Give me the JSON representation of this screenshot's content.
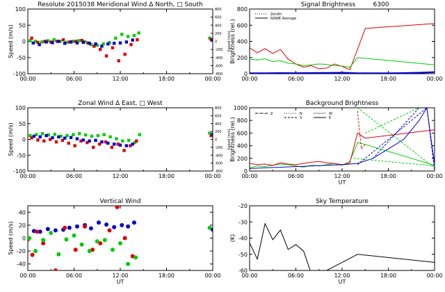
{
  "chart_data": [
    {
      "id": "meridional",
      "type": "scatter",
      "title_parts": [
        "Resolute  2015038",
        "Meridional Wind",
        "Δ North,",
        "□ South"
      ],
      "xlabel": "",
      "ylabel": "Speed (m/s)",
      "ylabel_right": "Speed (m/s)",
      "xlim": [
        0,
        24
      ],
      "ylim": [
        -100,
        100
      ],
      "yticks": [
        -100,
        -50,
        0,
        50,
        100
      ],
      "ylim_right": [
        -800,
        800
      ],
      "yticks_right": [
        -800,
        -600,
        -400,
        -200,
        0,
        200,
        400,
        600,
        800
      ],
      "xticks": [
        "00:00",
        "06:00",
        "12:00",
        "18:00",
        "00:00"
      ],
      "series": [
        {
          "color": "#00cc00",
          "x": [
            0.3,
            1.0,
            1.8,
            2.6,
            3.4,
            4.2,
            5.0,
            5.8,
            6.6,
            7.4,
            8.2,
            9.0,
            9.8,
            10.6,
            11.4,
            12.2,
            13.0,
            13.8,
            14.4
          ],
          "y": [
            2,
            0,
            -2,
            2,
            5,
            0,
            -3,
            0,
            2,
            -1,
            -10,
            -12,
            -8,
            -4,
            10,
            22,
            15,
            18,
            26
          ]
        },
        {
          "color": "#dd0000",
          "x": [
            0.5,
            1.3,
            2.2,
            3.0,
            3.8,
            4.6,
            5.4,
            6.2,
            7.0,
            7.8,
            8.6,
            9.4,
            10.2,
            11.0,
            11.8,
            12.6,
            13.4,
            14.2
          ],
          "y": [
            10,
            -3,
            0,
            -2,
            0,
            5,
            -2,
            0,
            3,
            -5,
            -15,
            -25,
            -45,
            -20,
            -60,
            -40,
            -10,
            5
          ]
        },
        {
          "color": "#0000cc",
          "x": [
            0.7,
            1.5,
            2.4,
            3.2,
            4.0,
            4.8,
            5.6,
            6.4,
            7.2,
            8.0,
            8.8,
            9.6,
            10.4,
            11.2,
            12.0,
            12.8,
            13.6
          ],
          "y": [
            -5,
            -10,
            -2,
            -4,
            0,
            -6,
            -2,
            -5,
            -3,
            -6,
            -8,
            -15,
            -8,
            -6,
            -5,
            -2,
            4
          ]
        }
      ],
      "extra_points": [
        {
          "color": "#00cc00",
          "x": 23.6,
          "y": 10
        },
        {
          "color": "#dd0000",
          "x": 23.8,
          "y": 6
        },
        {
          "color": "#0000cc",
          "x": 24.0,
          "y": 4
        }
      ]
    },
    {
      "id": "zonal",
      "type": "scatter",
      "title_parts": [
        "Zonal Wind",
        "Δ East,",
        "□ West"
      ],
      "xlabel": "",
      "ylabel": "Speed (m/s)",
      "ylabel_right": "Speed (m/s)",
      "xlim": [
        0,
        24
      ],
      "ylim": [
        -100,
        100
      ],
      "yticks": [
        -100,
        -50,
        0,
        50,
        100
      ],
      "ylim_right": [
        -800,
        800
      ],
      "yticks_right": [
        -800,
        -600,
        -400,
        -200,
        0,
        200,
        400,
        600,
        800
      ],
      "xticks": [
        "00:00",
        "06:00",
        "12:00",
        "18:00",
        "00:00"
      ],
      "series": [
        {
          "color": "#00cc00",
          "x": [
            0.3,
            1.1,
            1.9,
            2.7,
            3.5,
            4.3,
            5.1,
            5.9,
            6.7,
            7.5,
            8.3,
            9.1,
            9.9,
            10.7,
            11.5,
            12.3,
            13.1,
            13.9,
            14.5
          ],
          "y": [
            12,
            15,
            18,
            14,
            16,
            10,
            12,
            15,
            18,
            14,
            10,
            12,
            15,
            8,
            2,
            -5,
            -3,
            -10,
            15
          ]
        },
        {
          "color": "#dd0000",
          "x": [
            0.5,
            1.3,
            2.1,
            2.9,
            3.7,
            4.5,
            5.3,
            6.1,
            6.9,
            7.7,
            8.5,
            9.3,
            10.1,
            10.9,
            11.7,
            12.5,
            13.3,
            14.1
          ],
          "y": [
            5,
            -2,
            -5,
            0,
            -8,
            -3,
            -12,
            -20,
            -5,
            -10,
            -25,
            -15,
            -8,
            -25,
            -15,
            -35,
            -20,
            -5
          ]
        },
        {
          "color": "#0000cc",
          "x": [
            0.8,
            1.6,
            2.4,
            3.2,
            4.0,
            4.8,
            5.6,
            6.4,
            7.2,
            8.0,
            8.8,
            9.6,
            10.4,
            11.2,
            12.0,
            12.8,
            13.6
          ],
          "y": [
            10,
            8,
            12,
            5,
            8,
            4,
            6,
            2,
            -2,
            -5,
            -3,
            -8,
            -12,
            -15,
            -18,
            -20,
            -15
          ]
        }
      ],
      "extra_points": [
        {
          "color": "#00cc00",
          "x": 23.6,
          "y": 20
        },
        {
          "color": "#dd0000",
          "x": 23.8,
          "y": 12
        },
        {
          "color": "#0000cc",
          "x": 24.0,
          "y": 16
        }
      ]
    },
    {
      "id": "vertical",
      "type": "scatter",
      "title": "Vertical Wind",
      "xlabel": "UT",
      "ylabel": "Speed (m/s)",
      "xlim": [
        0,
        24
      ],
      "ylim": [
        -50,
        50
      ],
      "yticks": [
        -40,
        -20,
        0,
        20,
        40
      ],
      "xticks": [
        "00:00",
        "06:00",
        "12:00",
        "18:00",
        "00:00"
      ],
      "series": [
        {
          "color": "#0000cc",
          "x": [
            0.8,
            1.6,
            2.6,
            3.6,
            4.6,
            5.4,
            6.4,
            7.4,
            8.2,
            9.2,
            10.2,
            11.2,
            12.2,
            13.0,
            13.8
          ],
          "y": [
            11,
            10,
            14,
            12,
            13,
            16,
            18,
            20,
            15,
            24,
            21,
            17,
            20,
            18,
            24
          ]
        },
        {
          "color": "#dd0000",
          "x": [
            0.0,
            0.6,
            1.2,
            2.0,
            3.6,
            4.8,
            6.2,
            7.4,
            8.4,
            9.4,
            10.6,
            11.6,
            12.6,
            13.6
          ],
          "y": [
            -2,
            -26,
            10,
            -8,
            -50,
            16,
            -18,
            18,
            -18,
            -8,
            12,
            48,
            0,
            -28
          ]
        },
        {
          "color": "#00cc00",
          "x": [
            0.2,
            1.0,
            2.0,
            3.0,
            4.0,
            5.0,
            6.0,
            7.0,
            8.0,
            9.0,
            10.0,
            11.0,
            12.0,
            13.0,
            14.0
          ],
          "y": [
            0,
            -20,
            -3,
            8,
            -25,
            -2,
            4,
            -10,
            -20,
            -5,
            -3,
            -18,
            -8,
            -40,
            -30
          ]
        }
      ],
      "extra_points": [
        {
          "color": "#00cc00",
          "x": 23.6,
          "y": 16
        },
        {
          "color": "#0000cc",
          "x": 24.0,
          "y": 13
        }
      ]
    },
    {
      "id": "signal",
      "type": "line",
      "title": "Signal Brightness",
      "subtitle": "6300",
      "xlabel": "",
      "ylabel": "Brightness (rel.)",
      "xlim": [
        0,
        24
      ],
      "ylim": [
        0,
        800
      ],
      "yticks": [
        0,
        200,
        400,
        600,
        800
      ],
      "xticks": [
        "00:00",
        "06:00",
        "12:00",
        "18:00",
        "00:00"
      ],
      "legend": [
        "Zenith",
        "NSWE Average"
      ],
      "series": [
        {
          "name": "red",
          "color": "#dd0000",
          "x": [
            0,
            1,
            2,
            3,
            4,
            5,
            6,
            7,
            8,
            9,
            10,
            11,
            12,
            13,
            14,
            15,
            24
          ],
          "y": [
            320,
            260,
            310,
            250,
            300,
            180,
            120,
            80,
            100,
            60,
            70,
            120,
            90,
            50,
            300,
            560,
            620
          ]
        },
        {
          "name": "green",
          "color": "#00cc00",
          "x": [
            0,
            1,
            2,
            3,
            4,
            5,
            6,
            7,
            8,
            9,
            10,
            11,
            12,
            13,
            14,
            24
          ],
          "y": [
            180,
            170,
            185,
            150,
            160,
            130,
            120,
            100,
            110,
            120,
            115,
            100,
            95,
            80,
            200,
            110
          ]
        },
        {
          "name": "blue",
          "color": "#0000cc",
          "x": [
            0,
            2,
            4,
            6,
            8,
            10,
            12,
            14,
            16,
            18,
            20,
            22,
            24
          ],
          "y": [
            5,
            6,
            8,
            7,
            9,
            10,
            12,
            6,
            5,
            6,
            8,
            12,
            20
          ]
        }
      ]
    },
    {
      "id": "background",
      "type": "line",
      "title": "Background Brightness",
      "xlabel": "UT",
      "ylabel": "Brightness (rel.)",
      "xlim": [
        0,
        24
      ],
      "ylim": [
        0,
        1000
      ],
      "yticks": [
        0,
        200,
        400,
        600,
        800,
        1000
      ],
      "xticks": [
        "00:00",
        "06:00",
        "12:00",
        "18:00",
        "00:00"
      ],
      "legend": [
        "Z",
        "N",
        "S",
        "W",
        "E"
      ],
      "series": [
        {
          "name": "green",
          "color": "#00cc00",
          "x": [
            0,
            1,
            2,
            3,
            4,
            5,
            6,
            7,
            8,
            9,
            10,
            11,
            12,
            13,
            14,
            15,
            24
          ],
          "y": [
            50,
            80,
            70,
            90,
            110,
            100,
            80,
            60,
            90,
            80,
            100,
            120,
            90,
            150,
            450,
            420,
            90
          ]
        },
        {
          "name": "red",
          "color": "#dd0000",
          "x": [
            0,
            1,
            2,
            3,
            4,
            5,
            6,
            7,
            8,
            9,
            10,
            11,
            12,
            13,
            14,
            15,
            24
          ],
          "y": [
            120,
            100,
            110,
            90,
            130,
            110,
            100,
            120,
            140,
            150,
            130,
            120,
            100,
            130,
            600,
            520,
            650
          ]
        },
        {
          "name": "blue",
          "color": "#0000cc",
          "x": [
            0,
            2,
            4,
            6,
            8,
            10,
            12,
            14,
            16,
            18,
            20,
            22,
            23,
            24
          ],
          "y": [
            40,
            50,
            60,
            70,
            80,
            90,
            100,
            120,
            200,
            350,
            500,
            800,
            1000,
            100
          ]
        }
      ]
    },
    {
      "id": "sky",
      "type": "line",
      "title": "Sky Temperature",
      "xlabel": "UT",
      "ylabel": "(K)",
      "xlim": [
        0,
        24
      ],
      "ylim": [
        -60,
        -20
      ],
      "yticks": [
        -60,
        -50,
        -40,
        -30,
        -20
      ],
      "xticks": [
        "00:00",
        "06:00",
        "12:00",
        "18:00",
        "00:00"
      ],
      "series": [
        {
          "color": "#000000",
          "x": [
            0,
            1,
            2,
            3,
            4,
            5,
            6,
            7,
            8,
            9,
            10,
            14,
            24
          ],
          "y": [
            -43,
            -53,
            -31,
            -41,
            -35,
            -47,
            -44,
            -48,
            -62,
            -70,
            -60,
            -50,
            -55
          ]
        }
      ]
    }
  ]
}
